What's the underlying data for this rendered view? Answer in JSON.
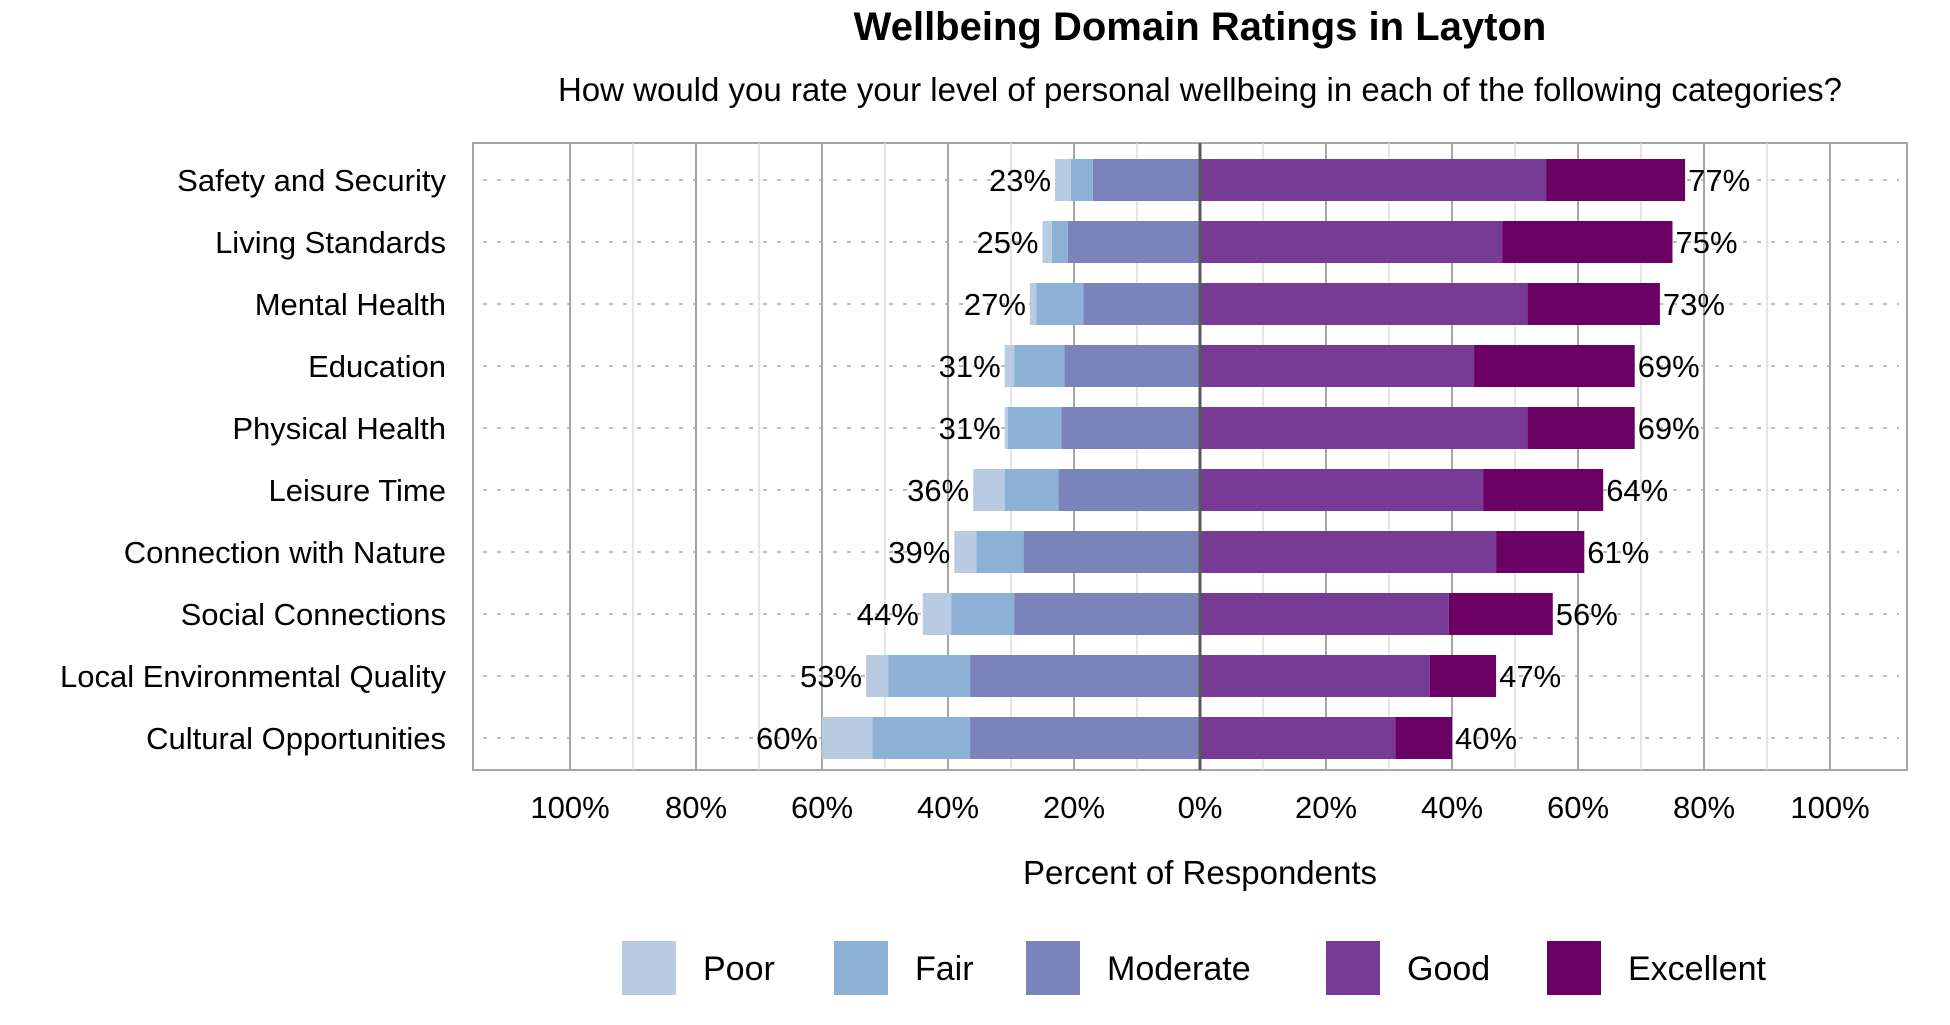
{
  "chart_data": {
    "type": "bar",
    "orientation": "horizontal",
    "stacking": "diverging",
    "title": "Wellbeing Domain Ratings in Layton",
    "subtitle": "How would you rate your level of personal wellbeing in each of the following categories?",
    "xlabel": "Percent of Respondents",
    "ylabel": "",
    "xlim": [
      -100,
      100
    ],
    "x_ticks": [
      -100,
      -80,
      -60,
      -40,
      -20,
      0,
      20,
      40,
      60,
      80,
      100
    ],
    "x_tick_labels": [
      "100%",
      "80%",
      "60%",
      "40%",
      "20%",
      "0%",
      "20%",
      "40%",
      "60%",
      "80%",
      "100%"
    ],
    "grid": true,
    "legend_position": "bottom",
    "categories": [
      "Safety and Security",
      "Living Standards",
      "Mental Health",
      "Education",
      "Physical Health",
      "Leisure Time",
      "Connection with Nature",
      "Social Connections",
      "Local Environmental Quality",
      "Cultural Opportunities"
    ],
    "negative_series": [
      "Poor",
      "Fair",
      "Moderate"
    ],
    "positive_series": [
      "Good",
      "Excellent"
    ],
    "series": [
      {
        "name": "Poor",
        "color": "#b8cbe2",
        "values": [
          2.5,
          1.5,
          1.0,
          1.5,
          0.5,
          5.0,
          3.5,
          4.5,
          3.5,
          8.0
        ]
      },
      {
        "name": "Fair",
        "color": "#8db0d5",
        "values": [
          3.5,
          2.5,
          7.5,
          8.0,
          8.5,
          8.5,
          7.5,
          10.0,
          13.0,
          15.5
        ]
      },
      {
        "name": "Moderate",
        "color": "#7a84bb",
        "values": [
          17.0,
          21.0,
          18.5,
          21.5,
          22.0,
          22.5,
          28.0,
          29.5,
          36.5,
          36.5
        ]
      },
      {
        "name": "Good",
        "color": "#773b96",
        "values": [
          55.0,
          48.0,
          52.0,
          43.5,
          52.0,
          45.0,
          47.0,
          39.5,
          36.5,
          31.0
        ]
      },
      {
        "name": "Excellent",
        "color": "#6a0064",
        "values": [
          22.0,
          27.0,
          21.0,
          25.5,
          17.0,
          19.0,
          14.0,
          16.5,
          10.5,
          9.0
        ]
      }
    ],
    "negative_totals": [
      "23%",
      "25%",
      "27%",
      "31%",
      "31%",
      "36%",
      "39%",
      "44%",
      "53%",
      "60%"
    ],
    "positive_totals": [
      "77%",
      "75%",
      "73%",
      "69%",
      "69%",
      "64%",
      "61%",
      "56%",
      "47%",
      "40%"
    ]
  }
}
